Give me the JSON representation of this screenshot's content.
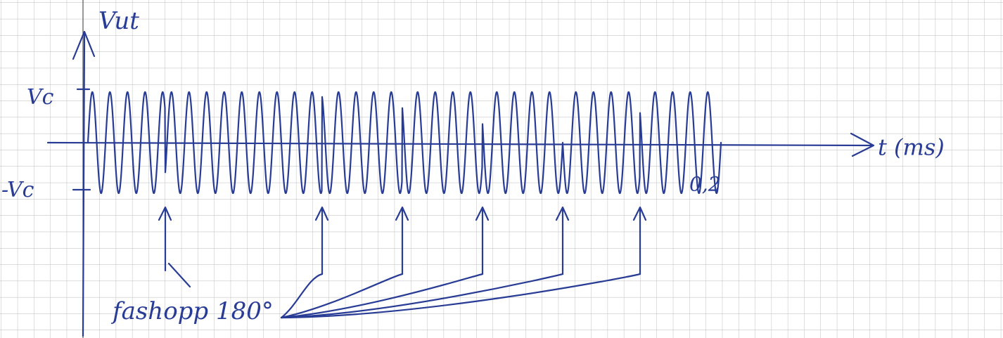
{
  "axes": {
    "y_label": "Vut",
    "x_label": "t (ms)",
    "y_ticks": [
      "Vc",
      "-Vc"
    ],
    "x_end_label": "0,2"
  },
  "annotation": "fashopp 180°"
}
